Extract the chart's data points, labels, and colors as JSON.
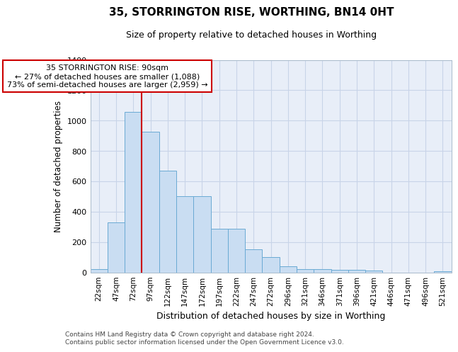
{
  "title": "35, STORRINGTON RISE, WORTHING, BN14 0HT",
  "subtitle": "Size of property relative to detached houses in Worthing",
  "xlabel": "Distribution of detached houses by size in Worthing",
  "ylabel": "Number of detached properties",
  "categories": [
    "22sqm",
    "47sqm",
    "72sqm",
    "97sqm",
    "122sqm",
    "147sqm",
    "172sqm",
    "197sqm",
    "222sqm",
    "247sqm",
    "272sqm",
    "296sqm",
    "321sqm",
    "346sqm",
    "371sqm",
    "396sqm",
    "421sqm",
    "446sqm",
    "471sqm",
    "496sqm",
    "521sqm"
  ],
  "values": [
    20,
    330,
    1055,
    925,
    670,
    500,
    500,
    285,
    285,
    150,
    100,
    40,
    22,
    20,
    18,
    15,
    10,
    0,
    0,
    0,
    5
  ],
  "bar_color": "#c9ddf2",
  "bar_edge_color": "#6aaad4",
  "grid_color": "#c8d4e8",
  "background_color": "#e8eef8",
  "vline_color": "#cc0000",
  "vline_x": 3.0,
  "annotation_text": "35 STORRINGTON RISE: 90sqm\n← 27% of detached houses are smaller (1,088)\n73% of semi-detached houses are larger (2,959) →",
  "annotation_box_color": "#ffffff",
  "annotation_box_edge": "#cc0000",
  "footer": "Contains HM Land Registry data © Crown copyright and database right 2024.\nContains public sector information licensed under the Open Government Licence v3.0.",
  "ylim": [
    0,
    1400
  ],
  "yticks": [
    0,
    200,
    400,
    600,
    800,
    1000,
    1200,
    1400
  ],
  "title_fontsize": 11,
  "subtitle_fontsize": 9
}
